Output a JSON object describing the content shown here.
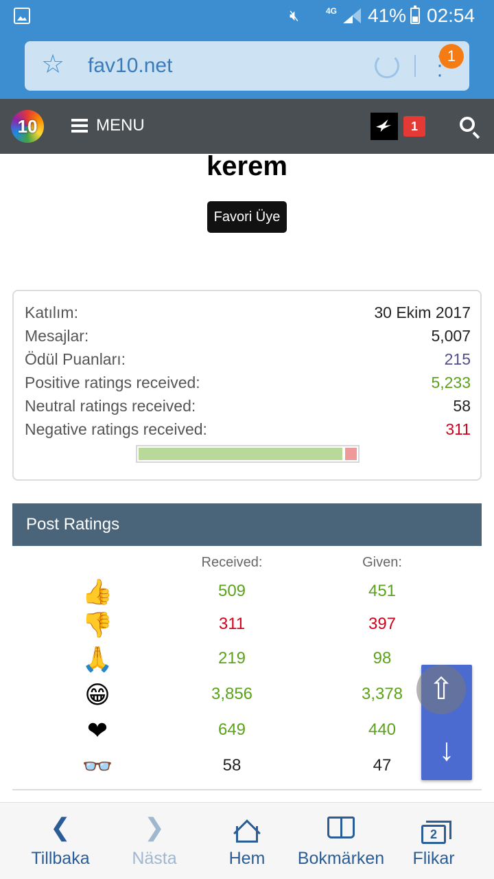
{
  "status_bar": {
    "network": "4G",
    "battery_percent": "41%",
    "time": "02:54"
  },
  "browser": {
    "url": "fav10.net",
    "menu_badge": "1",
    "bottom_nav": {
      "back": "Tillbaka",
      "forward": "Nästa",
      "home": "Hem",
      "bookmarks": "Bokmärken",
      "tabs": "Flikar",
      "tabs_count": "2"
    }
  },
  "site_nav": {
    "logo_text": "10",
    "menu_label": "MENU",
    "alerts_count": "1"
  },
  "profile": {
    "username": "kerem",
    "user_title": "Favori Üye",
    "stats": [
      {
        "label": "Katılım:",
        "value": "30 Ekim 2017",
        "color": "#222222"
      },
      {
        "label": "Mesajlar:",
        "value": "5,007",
        "color": "#222222"
      },
      {
        "label": "Ödül Puanları:",
        "value": "215",
        "color": "#4f4f8f"
      },
      {
        "label": "Positive ratings received:",
        "value": "5,233",
        "color": "#5ca11c"
      },
      {
        "label": "Neutral ratings received:",
        "value": "58",
        "color": "#222222"
      },
      {
        "label": "Negative ratings received:",
        "value": "311",
        "color": "#d0021b"
      }
    ],
    "rating_balance": {
      "positive_fraction": 0.94,
      "negative_fraction": 0.06
    }
  },
  "post_ratings": {
    "title": "Post Ratings",
    "received_header": "Received:",
    "given_header": "Given:",
    "rows": [
      {
        "icon": "thumbs-up-icon",
        "glyph": "👍",
        "received": "509",
        "given": "451",
        "color": "green"
      },
      {
        "icon": "thumbs-down-icon",
        "glyph": "👎",
        "received": "311",
        "given": "397",
        "color": "red"
      },
      {
        "icon": "pray-icon",
        "glyph": "🙏",
        "received": "219",
        "given": "98",
        "color": "green"
      },
      {
        "icon": "grin-icon",
        "glyph": "😁",
        "received": "3,856",
        "given": "3,378",
        "color": "green"
      },
      {
        "icon": "heart-icon",
        "glyph": "❤",
        "received": "649",
        "given": "440",
        "color": "green"
      },
      {
        "icon": "glasses-icon",
        "glyph": "👓",
        "received": "58",
        "given": "47",
        "color": "dark"
      }
    ]
  },
  "colors": {
    "browser_blue": "#3d8ed0",
    "site_nav": "#4a4f53",
    "panel_header": "#4a6479",
    "positive": "#5ca11c",
    "negative": "#d0021b",
    "scroll_buttons": "#4c6bd0"
  }
}
